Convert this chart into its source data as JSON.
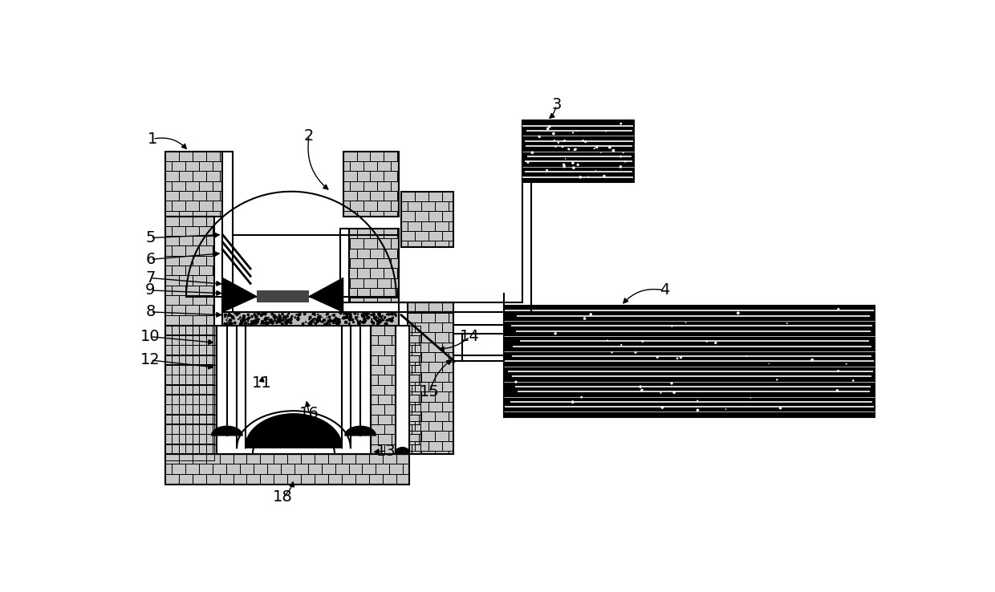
{
  "bg_color": "#ffffff",
  "line_color": "#000000",
  "brick_fill": "#c8c8c8",
  "white_fill": "#ffffff",
  "black_fill": "#000000",
  "gray_fill": "#aaaaaa"
}
